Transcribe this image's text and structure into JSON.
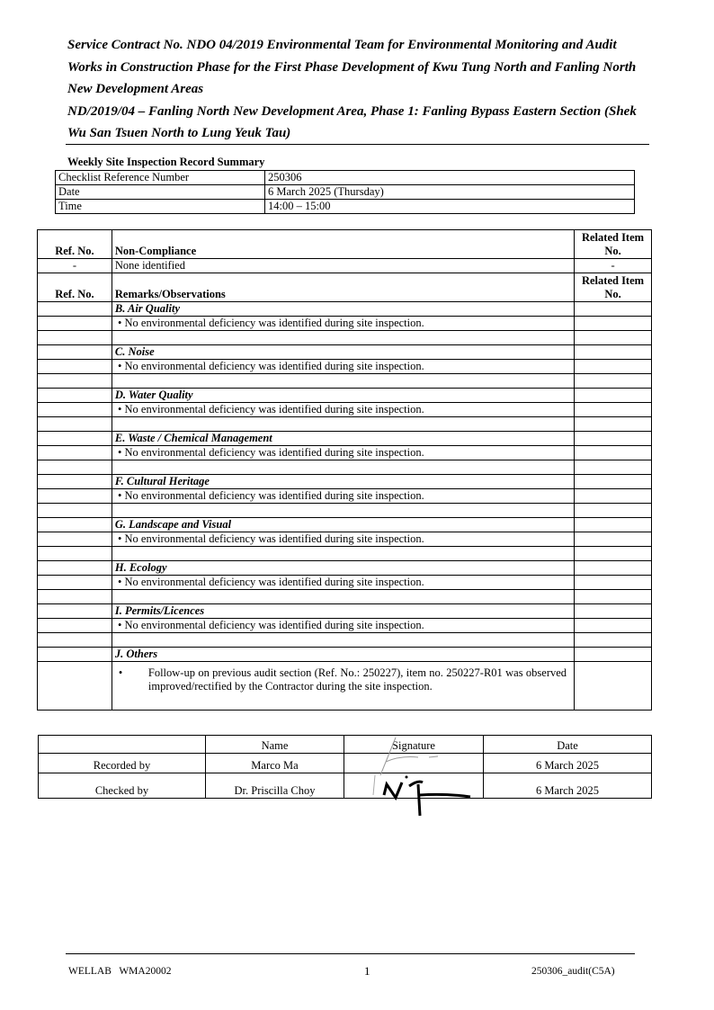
{
  "header": {
    "lines": [
      "Service Contract No. NDO 04/2019 Environmental Team for Environmental Monitoring and Audit Works in Construction Phase for the First Phase Development of Kwu Tung North and Fanling North New Development Areas",
      "ND/2019/04 – Fanling North New Development Area, Phase 1: Fanling Bypass Eastern Section (Shek Wu San Tsuen North to Lung Yeuk Tau)"
    ]
  },
  "summary": {
    "title": "Weekly Site Inspection Record Summary",
    "rows": [
      {
        "label": "Checklist Reference Number",
        "value": "250306"
      },
      {
        "label": "Date",
        "value": "6 March 2025 (Thursday)"
      },
      {
        "label": "Time",
        "value": "14:00 – 15:00"
      }
    ]
  },
  "compliance": {
    "col_ref": "Ref. No.",
    "col_nc": "Non-Compliance",
    "col_related": "Related Item No.",
    "nc_row": {
      "ref": "-",
      "text": "None identified",
      "related": "-"
    },
    "col_remarks": "Remarks/Observations",
    "sections": [
      {
        "heading": "B. Air Quality",
        "bullet": "No environmental deficiency was identified during site inspection."
      },
      {
        "heading": "C. Noise",
        "bullet": "No environmental deficiency was identified during site inspection."
      },
      {
        "heading": "D. Water Quality",
        "bullet": "No environmental deficiency was identified during site inspection."
      },
      {
        "heading": "E. Waste / Chemical Management",
        "bullet": "No environmental deficiency was identified during site inspection."
      },
      {
        "heading": "F. Cultural Heritage",
        "bullet": "No environmental deficiency was identified during site inspection."
      },
      {
        "heading": "G. Landscape and Visual",
        "bullet": "No environmental deficiency was identified during site inspection."
      },
      {
        "heading": "H. Ecology",
        "bullet": "No environmental deficiency was identified during site inspection."
      },
      {
        "heading": "I. Permits/Licences",
        "bullet": "No environmental deficiency was identified during site inspection."
      }
    ],
    "others": {
      "heading": "J. Others",
      "bullet": "Follow-up on previous audit section (Ref. No.: 250227), item no. 250227-R01 was observed improved/rectified by the Contractor during the site inspection."
    }
  },
  "signoff": {
    "cols": [
      "Name",
      "Signature",
      "Date"
    ],
    "rows": [
      {
        "role": "Recorded by",
        "name": "Marco Ma",
        "date": "6 March 2025"
      },
      {
        "role": "Checked by",
        "name": "Dr. Priscilla Choy",
        "date": "6 March 2025"
      }
    ]
  },
  "footer": {
    "left": "WELLAB   WMA20002",
    "page": "1",
    "right": "250306_audit(C5A)"
  }
}
